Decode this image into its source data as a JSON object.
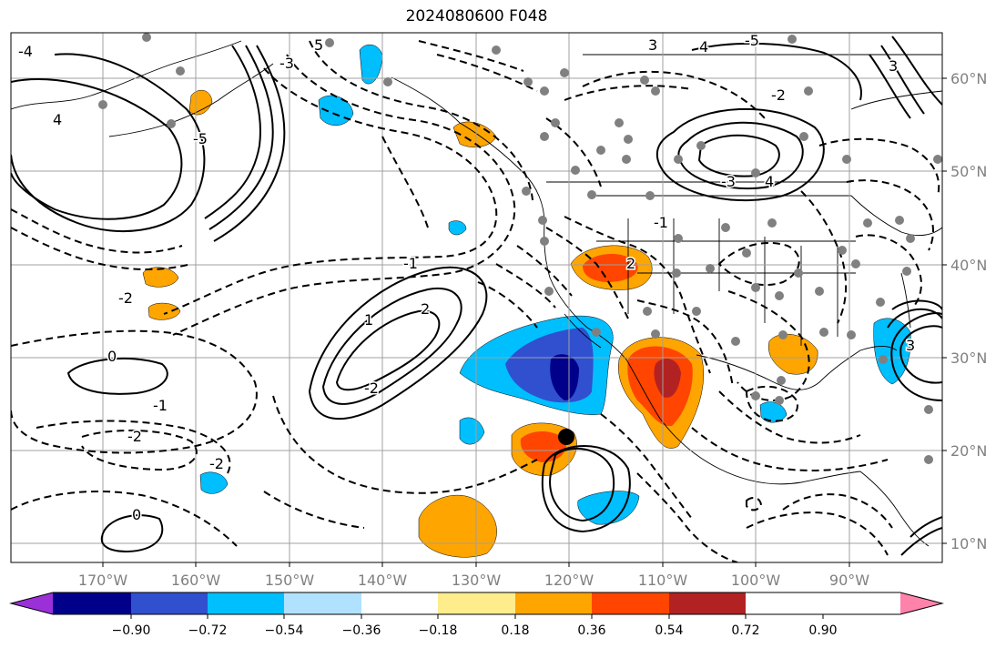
{
  "title": "2024080600 F048",
  "map": {
    "lon_labels": [
      "170°W",
      "160°W",
      "150°W",
      "140°W",
      "130°W",
      "120°W",
      "110°W",
      "100°W",
      "90°W"
    ],
    "lat_labels": [
      "60°N",
      "50°N",
      "40°N",
      "30°N",
      "20°N",
      "10°N"
    ],
    "contour_labels": [
      "4",
      "-4",
      "-5",
      "5",
      "-3",
      "-1",
      "-2",
      "0",
      "2",
      "1",
      "-2",
      "-1",
      "0",
      "-2",
      "-2",
      "3",
      "-5",
      "4",
      "-2",
      "2",
      "-3",
      "4",
      "-1",
      "3",
      "3"
    ],
    "storm_center_marker": "filled-circle"
  },
  "colorbar": {
    "colors": [
      "#9b30d9",
      "#00008b",
      "#3050d0",
      "#00bfff",
      "#b0e2ff",
      "#ffffff",
      "#ffec8b",
      "#ffa500",
      "#ff4500",
      "#b22222",
      "#ff82ab"
    ],
    "ticks": [
      "−0.90",
      "−0.72",
      "−0.54",
      "−0.36",
      "−0.18",
      "0.18",
      "0.36",
      "0.54",
      "0.72",
      "0.90"
    ]
  }
}
